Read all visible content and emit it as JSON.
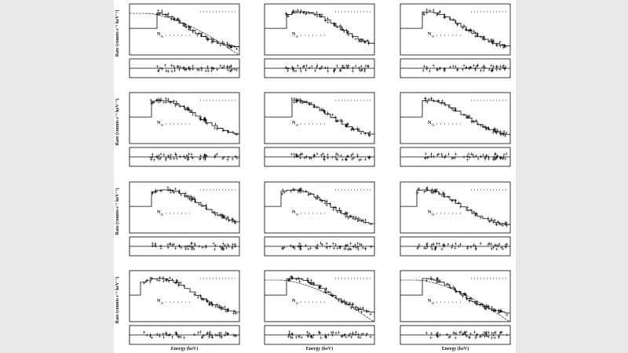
{
  "figure": {
    "y_label": "Rate (counts s⁻¹ keV⁻¹)",
    "x_label": "Energy (keV)",
    "nh_label": "N",
    "nh_sub": "H"
  }
}
